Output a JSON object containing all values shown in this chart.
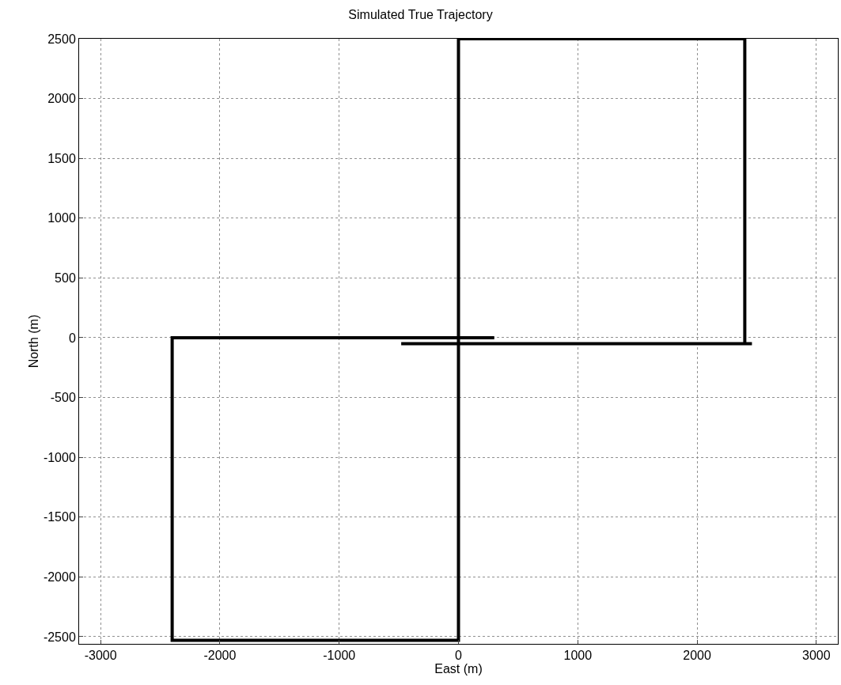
{
  "chart_data": {
    "type": "line",
    "title": "Simulated True Trajectory",
    "xlabel": "East (m)",
    "ylabel": "North (m)",
    "series": [
      {
        "color": "#000000",
        "x": [
          300,
          -2400,
          -2400,
          0,
          0,
          2400,
          2400,
          2460,
          -480
        ],
        "values": [
          0,
          0,
          -2530,
          -2530,
          2500,
          2500,
          -50,
          -50,
          -50
        ]
      }
    ],
    "xlim": [
      -3180,
      3180
    ],
    "ylim": [
      -2560,
      2500
    ],
    "xticks": [
      -3000,
      -2000,
      -1000,
      0,
      1000,
      2000,
      3000
    ],
    "yticks": [
      -2500,
      -2000,
      -1500,
      -1000,
      -500,
      0,
      500,
      1000,
      1500,
      2000,
      2500
    ],
    "grid": true,
    "marker": "none",
    "line_style": "solid"
  }
}
